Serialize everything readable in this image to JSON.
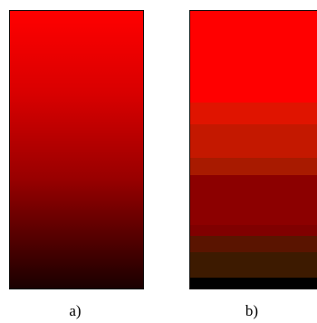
{
  "panels": [
    {
      "label": "a)",
      "gradient_colors": [
        "#ff0000",
        "#1a0000"
      ]
    },
    {
      "label": "b)",
      "band_colors": [
        "#ff0000",
        "#e01400",
        "#c41800",
        "#a81a00",
        "#8c0000",
        "#800000",
        "#5a1400",
        "#3d1a00",
        "#000000"
      ],
      "band_weights": [
        33,
        8,
        12,
        6,
        18,
        4,
        6,
        9,
        4
      ]
    }
  ]
}
